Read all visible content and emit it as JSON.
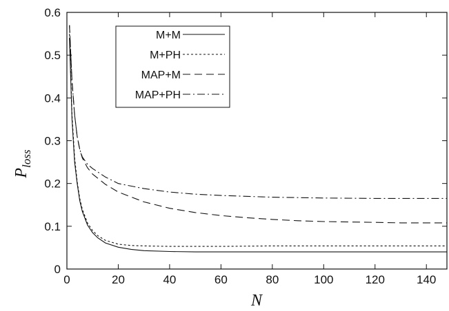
{
  "chart_data": {
    "type": "line",
    "title": "",
    "xlabel": "N",
    "ylabel_main": "P",
    "ylabel_sub": "loss",
    "xlim": [
      0,
      148
    ],
    "ylim": [
      0,
      0.6
    ],
    "xticks": [
      0,
      20,
      40,
      60,
      80,
      100,
      120,
      140
    ],
    "yticks": [
      0,
      0.1,
      0.2,
      0.3,
      0.4,
      0.5,
      0.6
    ],
    "xtick_labels": [
      "0",
      "20",
      "40",
      "60",
      "80",
      "100",
      "120",
      "140"
    ],
    "ytick_labels": [
      "0",
      "0.1",
      "0.2",
      "0.3",
      "0.4",
      "0.5",
      "0.6"
    ],
    "grid": false,
    "legend_position": "top-left",
    "series": [
      {
        "name": "M+M",
        "style": "solid",
        "x": [
          1,
          2,
          3,
          4,
          5,
          6,
          8,
          10,
          12,
          15,
          20,
          25,
          30,
          40,
          50,
          60,
          80,
          100,
          120,
          148
        ],
        "y": [
          0.54,
          0.35,
          0.25,
          0.2,
          0.16,
          0.135,
          0.103,
          0.085,
          0.073,
          0.061,
          0.051,
          0.046,
          0.043,
          0.041,
          0.04,
          0.04,
          0.04,
          0.04,
          0.04,
          0.04
        ]
      },
      {
        "name": "M+PH",
        "style": "dashed-short",
        "x": [
          1,
          2,
          3,
          4,
          5,
          6,
          8,
          10,
          12,
          15,
          20,
          25,
          30,
          40,
          50,
          60,
          80,
          100,
          120,
          148
        ],
        "y": [
          0.55,
          0.36,
          0.26,
          0.205,
          0.165,
          0.14,
          0.108,
          0.09,
          0.078,
          0.067,
          0.058,
          0.055,
          0.054,
          0.053,
          0.053,
          0.053,
          0.054,
          0.054,
          0.054,
          0.054
        ]
      },
      {
        "name": "MAP+M",
        "style": "dashed-long",
        "x": [
          1,
          2,
          3,
          4,
          5,
          6,
          8,
          10,
          15,
          20,
          30,
          40,
          50,
          60,
          70,
          80,
          90,
          100,
          110,
          120,
          130,
          148
        ],
        "y": [
          0.57,
          0.44,
          0.36,
          0.31,
          0.28,
          0.26,
          0.237,
          0.222,
          0.198,
          0.18,
          0.157,
          0.142,
          0.132,
          0.125,
          0.12,
          0.116,
          0.113,
          0.111,
          0.11,
          0.109,
          0.108,
          0.108
        ]
      },
      {
        "name": "MAP+PH",
        "style": "dash-dot",
        "x": [
          1,
          2,
          3,
          4,
          5,
          6,
          8,
          10,
          15,
          20,
          30,
          40,
          50,
          60,
          80,
          100,
          120,
          148
        ],
        "y": [
          0.57,
          0.44,
          0.36,
          0.31,
          0.28,
          0.262,
          0.245,
          0.235,
          0.215,
          0.2,
          0.188,
          0.18,
          0.175,
          0.172,
          0.168,
          0.166,
          0.165,
          0.165
        ]
      }
    ]
  }
}
